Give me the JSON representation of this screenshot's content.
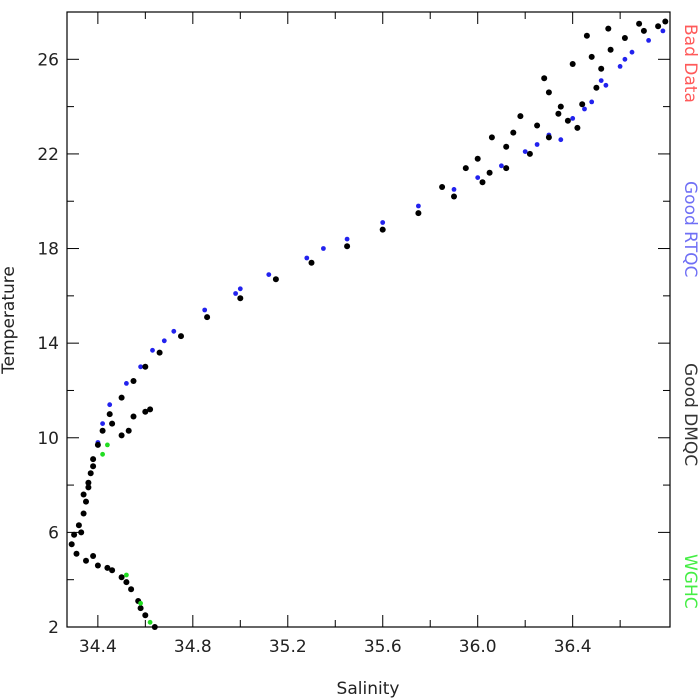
{
  "chart_data": {
    "type": "scatter",
    "title": "",
    "xlabel": "Salinity",
    "ylabel": "Temperature",
    "xlim": [
      34.27,
      36.81
    ],
    "ylim": [
      2,
      28
    ],
    "xticks": [
      "34.4",
      "34.8",
      "35.2",
      "35.6",
      "36.0",
      "36.4"
    ],
    "yticks": [
      "2",
      "6",
      "10",
      "14",
      "18",
      "22",
      "26"
    ],
    "grid": false,
    "legend_position": "right-outside-vertical",
    "series": [
      {
        "name": "Bad Data",
        "color": "#ff5a5a",
        "points": []
      },
      {
        "name": "Good RTQC",
        "color": "#2222ee",
        "points": [
          [
            34.4,
            9.8
          ],
          [
            34.42,
            10.6
          ],
          [
            34.45,
            11.4
          ],
          [
            34.52,
            12.3
          ],
          [
            34.58,
            13.0
          ],
          [
            34.63,
            13.7
          ],
          [
            34.72,
            14.5
          ],
          [
            34.85,
            15.4
          ],
          [
            34.98,
            16.1
          ],
          [
            35.12,
            16.9
          ],
          [
            35.28,
            17.6
          ],
          [
            35.45,
            18.4
          ],
          [
            35.6,
            19.1
          ],
          [
            35.75,
            19.8
          ],
          [
            35.9,
            20.5
          ],
          [
            36.0,
            21.0
          ],
          [
            36.1,
            21.5
          ],
          [
            36.2,
            22.1
          ],
          [
            36.3,
            22.8
          ],
          [
            36.4,
            23.5
          ],
          [
            36.48,
            24.2
          ],
          [
            36.54,
            24.9
          ],
          [
            36.6,
            25.7
          ],
          [
            36.65,
            26.3
          ],
          [
            36.72,
            26.8
          ],
          [
            36.78,
            27.2
          ],
          [
            36.45,
            23.9
          ],
          [
            36.35,
            22.6
          ],
          [
            36.52,
            25.1
          ],
          [
            36.62,
            26.0
          ],
          [
            36.25,
            22.4
          ],
          [
            35.35,
            18.0
          ],
          [
            35.0,
            16.3
          ],
          [
            34.68,
            14.1
          ]
        ]
      },
      {
        "name": "Good DMQC",
        "color": "#000000",
        "points": [
          [
            34.64,
            2.0
          ],
          [
            34.6,
            2.5
          ],
          [
            34.57,
            3.1
          ],
          [
            34.54,
            3.6
          ],
          [
            34.5,
            4.1
          ],
          [
            34.46,
            4.4
          ],
          [
            34.4,
            4.6
          ],
          [
            34.35,
            4.8
          ],
          [
            34.31,
            5.1
          ],
          [
            34.29,
            5.5
          ],
          [
            34.3,
            5.9
          ],
          [
            34.32,
            6.3
          ],
          [
            34.34,
            6.8
          ],
          [
            34.35,
            7.3
          ],
          [
            34.36,
            7.9
          ],
          [
            34.37,
            8.5
          ],
          [
            34.38,
            9.1
          ],
          [
            34.4,
            9.7
          ],
          [
            34.42,
            10.3
          ],
          [
            34.45,
            11.0
          ],
          [
            34.5,
            11.7
          ],
          [
            34.55,
            12.4
          ],
          [
            34.6,
            13.0
          ],
          [
            34.66,
            13.6
          ],
          [
            34.75,
            14.3
          ],
          [
            34.86,
            15.1
          ],
          [
            35.0,
            15.9
          ],
          [
            35.15,
            16.7
          ],
          [
            35.3,
            17.4
          ],
          [
            35.45,
            18.1
          ],
          [
            35.6,
            18.8
          ],
          [
            35.75,
            19.5
          ],
          [
            35.9,
            20.2
          ],
          [
            36.02,
            20.8
          ],
          [
            36.12,
            21.4
          ],
          [
            36.22,
            22.0
          ],
          [
            36.3,
            22.7
          ],
          [
            36.38,
            23.4
          ],
          [
            36.44,
            24.1
          ],
          [
            36.5,
            24.8
          ],
          [
            36.52,
            25.6
          ],
          [
            36.56,
            26.4
          ],
          [
            36.62,
            26.9
          ],
          [
            36.7,
            27.2
          ],
          [
            36.76,
            27.4
          ],
          [
            36.79,
            27.6
          ],
          [
            36.06,
            22.7
          ],
          [
            36.18,
            23.6
          ],
          [
            36.3,
            24.6
          ],
          [
            36.4,
            25.8
          ],
          [
            36.46,
            27.0
          ],
          [
            36.55,
            27.3
          ],
          [
            36.0,
            21.8
          ],
          [
            36.12,
            22.3
          ],
          [
            36.25,
            23.2
          ],
          [
            36.35,
            24.0
          ],
          [
            36.42,
            23.1
          ],
          [
            35.95,
            21.4
          ],
          [
            35.85,
            20.6
          ],
          [
            34.46,
            10.6
          ],
          [
            34.5,
            10.1
          ],
          [
            34.55,
            10.9
          ],
          [
            34.6,
            11.1
          ],
          [
            34.62,
            11.2
          ],
          [
            34.53,
            10.3
          ],
          [
            34.34,
            7.6
          ],
          [
            34.36,
            8.1
          ],
          [
            34.38,
            8.8
          ],
          [
            34.33,
            6.0
          ],
          [
            34.38,
            5.0
          ],
          [
            34.44,
            4.5
          ],
          [
            34.52,
            3.9
          ],
          [
            34.58,
            2.8
          ],
          [
            36.28,
            25.2
          ],
          [
            36.48,
            26.1
          ],
          [
            36.34,
            23.7
          ],
          [
            36.15,
            22.9
          ],
          [
            36.05,
            21.2
          ],
          [
            36.68,
            27.5
          ]
        ]
      },
      {
        "name": "WGHC",
        "color": "#22dd22",
        "points": [
          [
            34.42,
            9.3
          ],
          [
            34.52,
            4.2
          ],
          [
            34.62,
            2.2
          ],
          [
            34.44,
            9.7
          ],
          [
            34.58,
            3.0
          ]
        ]
      }
    ]
  }
}
